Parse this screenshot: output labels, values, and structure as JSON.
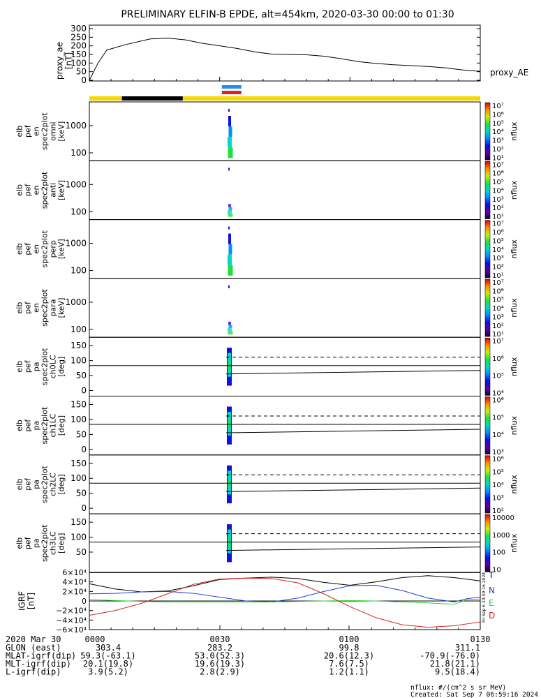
{
  "title": "PRELIMINARY ELFIN-B EPDE, alt=454km, 2020-03-30 00:00 to 01:30",
  "proxy_ae": {
    "ylabel": [
      "proxy_ae",
      "[nT]"
    ],
    "legend": "proxy_AE",
    "yticks": [
      "300",
      "250",
      "200",
      "150",
      "100",
      "50",
      "0"
    ]
  },
  "spec_panels": [
    {
      "ylabel": [
        "elb",
        "pef",
        "en",
        "spec2plot",
        "omni",
        "[keV]"
      ],
      "yticks": [
        "1000",
        "100"
      ],
      "cb_label": "nflux",
      "cb_ticks": [
        "10⁷",
        "10⁶",
        "10⁵",
        "10⁴",
        "10³",
        "10²",
        "10¹"
      ]
    },
    {
      "ylabel": [
        "elb",
        "pef",
        "en",
        "spec2plot",
        "anti",
        "[keV]"
      ],
      "yticks": [
        "1000",
        "100"
      ],
      "cb_label": "nflux",
      "cb_ticks": [
        "10⁷",
        "10⁶",
        "10⁵",
        "10⁴",
        "10³",
        "10²",
        "10¹"
      ]
    },
    {
      "ylabel": [
        "elb",
        "pef",
        "en",
        "spec2plot",
        "perp",
        "[keV]"
      ],
      "yticks": [
        "1000",
        "100"
      ],
      "cb_label": "nflux",
      "cb_ticks": [
        "10⁷",
        "10⁶",
        "10⁵",
        "10⁴",
        "10³",
        "10²",
        "10¹"
      ]
    },
    {
      "ylabel": [
        "elb",
        "pef",
        "en",
        "spec2plot",
        "para",
        "[keV]"
      ],
      "yticks": [
        "1000",
        "100"
      ],
      "cb_label": "nflux",
      "cb_ticks": [
        "10⁷",
        "10⁶",
        "10⁵",
        "10⁴",
        "10³",
        "10²",
        "10¹"
      ]
    },
    {
      "ylabel": [
        "elb",
        "pef",
        "pa",
        "spec2plot",
        "ch0LC",
        "[deg]"
      ],
      "yticks": [
        "150",
        "100",
        "50",
        "0"
      ],
      "cb_label": "nflux",
      "cb_ticks": [
        "10⁷",
        "10⁶",
        "10⁵",
        "10⁴"
      ]
    },
    {
      "ylabel": [
        "elb",
        "pef",
        "pa",
        "spec2plot",
        "ch1LC",
        "[deg]"
      ],
      "yticks": [
        "150",
        "100",
        "50",
        "0"
      ],
      "cb_label": "nflux",
      "cb_ticks": [
        "10⁶",
        "10⁵",
        "10⁴",
        "10³"
      ]
    },
    {
      "ylabel": [
        "elb",
        "pef",
        "pa",
        "spec2plot",
        "ch2LC",
        "[deg]"
      ],
      "yticks": [
        "150",
        "100",
        "50",
        "0"
      ],
      "cb_label": "nflux",
      "cb_ticks": [
        "10⁶",
        "10⁵",
        "10⁴",
        "10³",
        "10²"
      ]
    },
    {
      "ylabel": [
        "elb",
        "pef",
        "pa",
        "spec2plot",
        "ch3LC",
        "[deg]"
      ],
      "yticks": [
        "150",
        "100",
        "50"
      ],
      "cb_label": "nflux",
      "cb_ticks": [
        "10000",
        "1000",
        "100",
        "10"
      ]
    }
  ],
  "igrf": {
    "ylabel": [
      "IGRF",
      "[nT]"
    ],
    "yticks": [
      "6×10⁴",
      "4×10⁴",
      "2×10⁴",
      "0",
      "−2×10⁴",
      "−4×10⁴",
      "−6×10⁴"
    ],
    "legend": [
      {
        "label": "T",
        "color": "#000000"
      },
      {
        "label": "N",
        "color": "#1f3fd0"
      },
      {
        "label": "E",
        "color": "#33cc33"
      },
      {
        "label": "D",
        "color": "#d42020"
      }
    ]
  },
  "xaxis": {
    "date": "2020 Mar 30",
    "ticks": [
      "0000",
      "0030",
      "0100",
      "0130"
    ],
    "rows": [
      {
        "label": "GLON (east)",
        "values": [
          "303.4",
          "283.2",
          "99.8",
          "311.1"
        ]
      },
      {
        "label": "MLAT-igrf(dip)",
        "values": [
          "59.3(-63.1)",
          "53.0(52.3)",
          "20.6(12.3)",
          "-70.9(-76.0)"
        ]
      },
      {
        "label": "MLT-igrf(dip)",
        "values": [
          "20.1(19.8)",
          "19.6(19.3)",
          "7.6(7.5)",
          "21.8(21.1)"
        ]
      },
      {
        "label": "L-igrf(dip)",
        "values": [
          "3.9(5.2)",
          "2.8(2.9)",
          "1.2(1.1)",
          "9.5(18.4)"
        ]
      }
    ]
  },
  "footer": {
    "units": "nflux: #/(cm^2 s sr MeV)",
    "created": "Created: Sat Sep  7 06:59:16 2024",
    "stamp": "Fri Sep  6 23:59:16 2024"
  },
  "colors": {
    "status_bar": "#f5d800",
    "eclipse_bar": "#000000",
    "sci_zone_top": "#2a8ef0",
    "sci_zone_bottom": "#e81c1c"
  },
  "chart_data": {
    "type": "line",
    "title": "PRELIMINARY ELFIN-B EPDE, alt=454km, 2020-03-30 00:00 to 01:30",
    "x_range_minutes": [
      0,
      90
    ],
    "series": [
      {
        "name": "proxy_AE",
        "ylim": [
          0,
          300
        ],
        "x": [
          0,
          2,
          4,
          8,
          14,
          18,
          22,
          26,
          30,
          34,
          38,
          42,
          46,
          50,
          54,
          58,
          62,
          66,
          70,
          74,
          78,
          82,
          86,
          88,
          90
        ],
        "y": [
          0,
          100,
          175,
          205,
          240,
          245,
          235,
          215,
          200,
          185,
          165,
          152,
          150,
          148,
          140,
          125,
          108,
          98,
          90,
          85,
          80,
          72,
          60,
          55,
          52
        ]
      },
      {
        "name": "T",
        "ylim": [
          -60000,
          60000
        ],
        "x": [
          0,
          6,
          12,
          18,
          24,
          30,
          36,
          42,
          48,
          54,
          60,
          66,
          72,
          78,
          84,
          90
        ],
        "y": [
          36000,
          25000,
          19000,
          21000,
          32000,
          45000,
          48000,
          50000,
          47000,
          39000,
          33000,
          40000,
          49000,
          53000,
          49000,
          42000
        ]
      },
      {
        "name": "N",
        "ylim": [
          -60000,
          60000
        ],
        "x": [
          0,
          6,
          12,
          18,
          24,
          30,
          36,
          42,
          48,
          54,
          60,
          66,
          72,
          78,
          84,
          87,
          90
        ],
        "y": [
          15000,
          16000,
          19000,
          20000,
          16000,
          8000,
          0,
          -2000,
          6000,
          20000,
          32000,
          33000,
          22000,
          6000,
          -2000,
          5000,
          8000
        ]
      },
      {
        "name": "E",
        "ylim": [
          -60000,
          60000
        ],
        "x": [
          0,
          6,
          12,
          18,
          24,
          30,
          36,
          42,
          48,
          54,
          60,
          66,
          72,
          78,
          84,
          87,
          90
        ],
        "y": [
          3000,
          1000,
          -1000,
          -2000,
          -2000,
          -2000,
          -2000,
          -2000,
          -1000,
          0,
          1000,
          0,
          -2000,
          -4000,
          -7000,
          3000,
          4000
        ]
      },
      {
        "name": "D",
        "ylim": [
          -60000,
          60000
        ],
        "x": [
          0,
          6,
          12,
          18,
          24,
          30,
          36,
          42,
          48,
          54,
          60,
          66,
          72,
          78,
          84,
          90
        ],
        "y": [
          -30000,
          -20000,
          -5000,
          15000,
          35000,
          46000,
          48000,
          47000,
          38000,
          15000,
          -12000,
          -35000,
          -50000,
          -55000,
          -52000,
          -44000
        ]
      }
    ]
  }
}
